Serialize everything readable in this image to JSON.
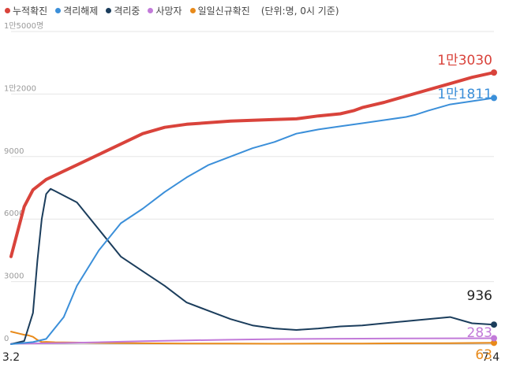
{
  "legend_unit": "(단위:명, 0시 기준)",
  "chart_data": {
    "type": "line",
    "x_start": "3.2",
    "x_end": "7.4",
    "xlabels": [
      "3.2",
      "7.4"
    ],
    "ylim": [
      0,
      15000
    ],
    "yticks": [
      0,
      3000,
      6000,
      9000,
      12000,
      15000
    ],
    "ytick_labels": [
      "0",
      "3000",
      "6000",
      "9000",
      "1만2000",
      "1만5000명"
    ],
    "grid": true,
    "legend_position": "top-left",
    "series": [
      {
        "name": "누적확진",
        "color": "#d9433b",
        "end_label": "1만3030",
        "points": [
          [
            0,
            4200
          ],
          [
            3,
            6600
          ],
          [
            5,
            7400
          ],
          [
            8,
            7900
          ],
          [
            12,
            8300
          ],
          [
            15,
            8600
          ],
          [
            20,
            9100
          ],
          [
            25,
            9600
          ],
          [
            30,
            10100
          ],
          [
            35,
            10400
          ],
          [
            40,
            10550
          ],
          [
            50,
            10700
          ],
          [
            60,
            10780
          ],
          [
            65,
            10810
          ],
          [
            70,
            10950
          ],
          [
            75,
            11050
          ],
          [
            78,
            11200
          ],
          [
            80,
            11350
          ],
          [
            85,
            11600
          ],
          [
            90,
            11900
          ],
          [
            95,
            12200
          ],
          [
            100,
            12500
          ],
          [
            105,
            12800
          ],
          [
            110,
            13030
          ]
        ]
      },
      {
        "name": "격리해제",
        "color": "#3b8fd9",
        "end_label": "1만1811",
        "points": [
          [
            0,
            0
          ],
          [
            5,
            100
          ],
          [
            8,
            250
          ],
          [
            12,
            1300
          ],
          [
            15,
            2800
          ],
          [
            20,
            4500
          ],
          [
            25,
            5800
          ],
          [
            30,
            6500
          ],
          [
            35,
            7300
          ],
          [
            40,
            8000
          ],
          [
            45,
            8600
          ],
          [
            50,
            9000
          ],
          [
            55,
            9400
          ],
          [
            60,
            9700
          ],
          [
            65,
            10100
          ],
          [
            70,
            10300
          ],
          [
            75,
            10450
          ],
          [
            80,
            10600
          ],
          [
            85,
            10750
          ],
          [
            90,
            10900
          ],
          [
            92,
            11000
          ],
          [
            95,
            11200
          ],
          [
            100,
            11500
          ],
          [
            110,
            11811
          ]
        ]
      },
      {
        "name": "격리중",
        "color": "#1b3d5c",
        "end_label": "936",
        "points": [
          [
            0,
            0
          ],
          [
            3,
            150
          ],
          [
            5,
            1500
          ],
          [
            6,
            4000
          ],
          [
            7,
            6000
          ],
          [
            8,
            7200
          ],
          [
            9,
            7450
          ],
          [
            10,
            7350
          ],
          [
            15,
            6800
          ],
          [
            20,
            5500
          ],
          [
            25,
            4200
          ],
          [
            30,
            3500
          ],
          [
            35,
            2800
          ],
          [
            40,
            2000
          ],
          [
            45,
            1600
          ],
          [
            50,
            1200
          ],
          [
            55,
            900
          ],
          [
            60,
            750
          ],
          [
            65,
            680
          ],
          [
            70,
            750
          ],
          [
            75,
            850
          ],
          [
            80,
            900
          ],
          [
            85,
            1000
          ],
          [
            90,
            1100
          ],
          [
            95,
            1200
          ],
          [
            100,
            1300
          ],
          [
            105,
            1000
          ],
          [
            110,
            936
          ]
        ]
      },
      {
        "name": "사망자",
        "color": "#c27ad9",
        "end_label": "283",
        "points": [
          [
            0,
            20
          ],
          [
            10,
            50
          ],
          [
            20,
            90
          ],
          [
            30,
            140
          ],
          [
            40,
            180
          ],
          [
            50,
            210
          ],
          [
            60,
            240
          ],
          [
            70,
            255
          ],
          [
            80,
            265
          ],
          [
            90,
            275
          ],
          [
            100,
            280
          ],
          [
            110,
            283
          ]
        ]
      },
      {
        "name": "일일신규확진",
        "color": "#e88a1a",
        "end_label": "63",
        "points": [
          [
            0,
            600
          ],
          [
            2,
            500
          ],
          [
            3,
            450
          ],
          [
            4,
            420
          ],
          [
            5,
            350
          ],
          [
            6,
            200
          ],
          [
            7,
            100
          ],
          [
            8,
            110
          ],
          [
            10,
            90
          ],
          [
            14,
            80
          ],
          [
            20,
            60
          ],
          [
            30,
            40
          ],
          [
            40,
            30
          ],
          [
            50,
            30
          ],
          [
            60,
            20
          ],
          [
            70,
            25
          ],
          [
            80,
            30
          ],
          [
            90,
            40
          ],
          [
            100,
            50
          ],
          [
            110,
            63
          ]
        ]
      }
    ]
  }
}
